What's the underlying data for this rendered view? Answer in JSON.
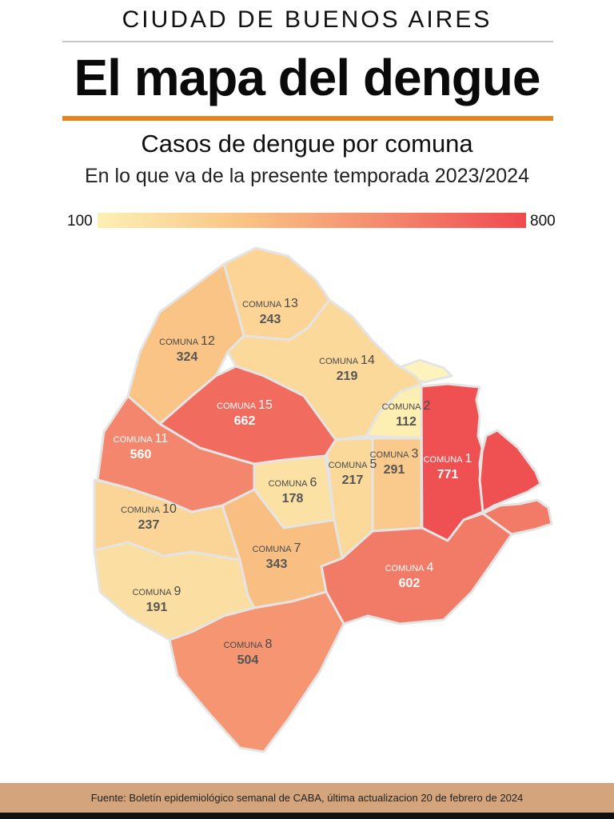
{
  "header": {
    "kicker": "CIUDAD DE BUENOS AIRES",
    "title": "El mapa del dengue",
    "subtitle": "Casos de dengue por comuna",
    "subtitle2": "En lo que va de la presente temporada 2023/2024"
  },
  "legend": {
    "min_label": "100",
    "max_label": "800",
    "min_value": 100,
    "max_value": 800,
    "colors": [
      "#fdf0b4",
      "#f9c283",
      "#f3846b",
      "#ef4a4e"
    ]
  },
  "comunas": [
    {
      "label": "COMUNA",
      "num": "1",
      "cases": "771",
      "value": 771
    },
    {
      "label": "COMUNA",
      "num": "2",
      "cases": "112",
      "value": 112
    },
    {
      "label": "COMUNA",
      "num": "3",
      "cases": "291",
      "value": 291
    },
    {
      "label": "COMUNA",
      "num": "4",
      "cases": "602",
      "value": 602
    },
    {
      "label": "COMUNA",
      "num": "5",
      "cases": "217",
      "value": 217
    },
    {
      "label": "COMUNA",
      "num": "6",
      "cases": "178",
      "value": 178
    },
    {
      "label": "COMUNA",
      "num": "7",
      "cases": "343",
      "value": 343
    },
    {
      "label": "COMUNA",
      "num": "8",
      "cases": "504",
      "value": 504
    },
    {
      "label": "COMUNA",
      "num": "9",
      "cases": "191",
      "value": 191
    },
    {
      "label": "COMUNA",
      "num": "10",
      "cases": "237",
      "value": 237
    },
    {
      "label": "COMUNA",
      "num": "11",
      "cases": "560",
      "value": 560
    },
    {
      "label": "COMUNA",
      "num": "12",
      "cases": "324",
      "value": 324
    },
    {
      "label": "COMUNA",
      "num": "13",
      "cases": "243",
      "value": 243
    },
    {
      "label": "COMUNA",
      "num": "14",
      "cases": "219",
      "value": 219
    },
    {
      "label": "COMUNA",
      "num": "15",
      "cases": "662",
      "value": 662
    }
  ],
  "footer": {
    "source": "Fuente: Boletín epidemiológico semanal de CABA, última actualizacion 20 de febrero de 2024"
  }
}
